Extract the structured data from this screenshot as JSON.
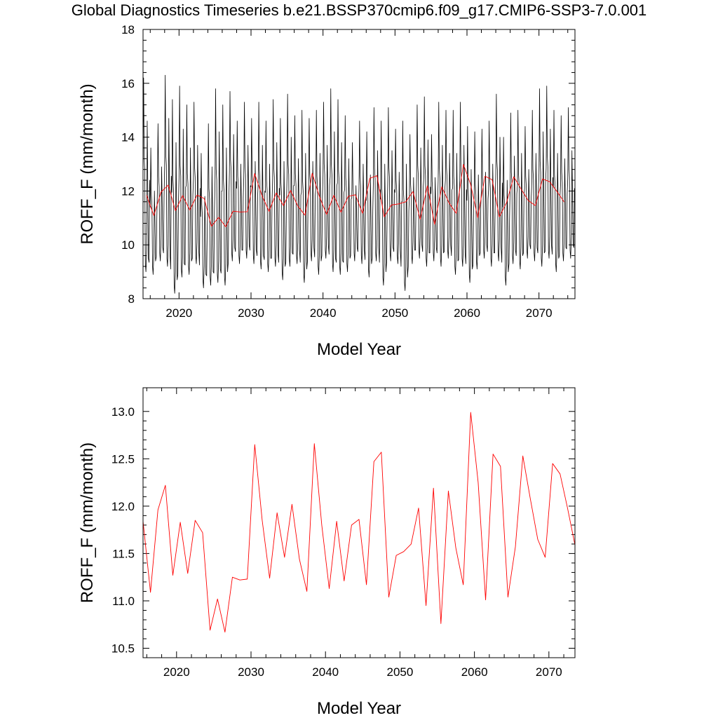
{
  "page_title": "Global Diagnostics Timeseries b.e21.BSSP370cmip6.f09_g17.CMIP6-SSP3-7.0.001",
  "colors": {
    "monthly": "#000000",
    "annual": "#ff0000",
    "axis": "#000000"
  },
  "chart_data": [
    {
      "type": "line",
      "title": "Global Diagnostics Timeseries b.e21.BSSP370cmip6.f09_g17.CMIP6-SSP3-7.0.001",
      "xlabel": "Model Year",
      "ylabel": "ROFF_F (mm/month)",
      "xlim": [
        2015,
        2075
      ],
      "ylim": [
        8,
        18
      ],
      "x_ticks": [
        2020,
        2030,
        2040,
        2050,
        2060,
        2070
      ],
      "x_tick_labels": [
        "2020",
        "2030",
        "2040",
        "2050",
        "2060",
        "2070"
      ],
      "y_ticks": [
        8,
        10,
        12,
        14,
        16,
        18
      ],
      "y_tick_labels": [
        "8",
        "10",
        "12",
        "14",
        "16",
        "18"
      ],
      "series": [
        {
          "name": "monthly",
          "color": "#000000",
          "start_year": 2015,
          "seasonal_peaks": [
            16.2,
            13.6,
            14.5,
            16.3,
            15.4,
            15.9,
            15.2,
            15.3,
            13.4,
            14.5,
            15.8,
            15.2,
            15.7,
            14.6,
            15.3,
            14.7,
            15.3,
            14.6,
            15.4,
            14.7,
            15.6,
            14.8,
            15.0,
            14.7,
            15.0,
            15.3,
            15.8,
            15.4,
            14.8,
            13.8,
            14.6,
            14.2,
            15.1,
            14.6,
            15.1,
            14.3,
            14.6,
            14.1,
            15.2,
            15.5,
            14.1,
            15.3,
            15.0,
            15.0,
            15.3,
            14.4,
            14.2,
            14.3,
            14.6,
            15.6,
            14.0,
            14.9,
            15.0,
            14.4,
            15.0,
            15.8,
            15.9,
            15.0,
            14.8,
            15.1
          ],
          "seasonal_troughs": [
            9.0,
            8.9,
            9.4,
            9.2,
            8.2,
            8.8,
            8.9,
            9.3,
            8.4,
            8.5,
            8.6,
            8.5,
            9.4,
            9.3,
            9.5,
            9.3,
            9.1,
            9.0,
            9.2,
            8.7,
            9.2,
            9.3,
            8.6,
            9.4,
            8.9,
            9.5,
            9.0,
            8.9,
            9.0,
            9.4,
            9.3,
            8.8,
            9.4,
            8.5,
            9.4,
            9.3,
            8.3,
            9.3,
            9.5,
            9.2,
            9.4,
            9.2,
            9.5,
            8.9,
            9.2,
            8.6,
            9.1,
            9.5,
            9.2,
            9.4,
            8.5,
            9.3,
            9.1,
            9.5,
            9.4,
            9.2,
            9.5,
            9.0,
            9.4,
            9.5
          ]
        },
        {
          "name": "annual",
          "color": "#ff0000",
          "x": [
            2015.5,
            2016.5,
            2017.5,
            2018.5,
            2019.5,
            2020.5,
            2021.5,
            2022.5,
            2023.5,
            2024.5,
            2025.5,
            2026.5,
            2027.5,
            2028.5,
            2029.5,
            2030.5,
            2031.5,
            2032.5,
            2033.5,
            2034.5,
            2035.5,
            2036.5,
            2037.5,
            2038.5,
            2039.5,
            2040.5,
            2041.5,
            2042.5,
            2043.5,
            2044.5,
            2045.5,
            2046.5,
            2047.5,
            2048.5,
            2049.5,
            2050.5,
            2051.5,
            2052.5,
            2053.5,
            2054.5,
            2055.5,
            2056.5,
            2057.5,
            2058.5,
            2059.5,
            2060.5,
            2061.5,
            2062.5,
            2063.5,
            2064.5,
            2065.5,
            2066.5,
            2067.5,
            2068.5,
            2069.5,
            2070.5,
            2071.5,
            2072.5,
            2073.5
          ],
          "y": [
            11.84,
            11.09,
            11.96,
            12.22,
            11.27,
            11.83,
            11.29,
            11.85,
            11.72,
            10.69,
            11.02,
            10.67,
            11.25,
            11.22,
            11.23,
            12.65,
            11.85,
            11.24,
            11.93,
            11.46,
            12.02,
            11.44,
            11.1,
            12.66,
            11.8,
            11.13,
            11.84,
            11.21,
            11.8,
            11.86,
            11.17,
            12.47,
            12.57,
            11.04,
            11.48,
            11.52,
            11.6,
            11.98,
            10.95,
            12.19,
            10.76,
            12.16,
            11.56,
            11.17,
            12.99,
            12.25,
            11.01,
            12.55,
            12.42,
            11.04,
            11.57,
            12.53,
            12.08,
            11.65,
            11.46,
            12.45,
            12.34,
            11.98,
            11.59
          ]
        }
      ]
    },
    {
      "type": "line",
      "title": "",
      "xlabel": "Model Year",
      "ylabel": "ROFF_F (mm/month)",
      "xlim": [
        2015.5,
        2073.5
      ],
      "ylim": [
        10.4,
        13.25
      ],
      "x_ticks": [
        2020,
        2030,
        2040,
        2050,
        2060,
        2070
      ],
      "x_tick_labels": [
        "2020",
        "2030",
        "2040",
        "2050",
        "2060",
        "2070"
      ],
      "y_ticks": [
        10.5,
        11.0,
        11.5,
        12.0,
        12.5,
        13.0
      ],
      "y_tick_labels": [
        "10.5",
        "11.0",
        "11.5",
        "12.0",
        "12.5",
        "13.0"
      ],
      "series": [
        {
          "name": "annual",
          "color": "#ff0000",
          "x": [
            2015.5,
            2016.5,
            2017.5,
            2018.5,
            2019.5,
            2020.5,
            2021.5,
            2022.5,
            2023.5,
            2024.5,
            2025.5,
            2026.5,
            2027.5,
            2028.5,
            2029.5,
            2030.5,
            2031.5,
            2032.5,
            2033.5,
            2034.5,
            2035.5,
            2036.5,
            2037.5,
            2038.5,
            2039.5,
            2040.5,
            2041.5,
            2042.5,
            2043.5,
            2044.5,
            2045.5,
            2046.5,
            2047.5,
            2048.5,
            2049.5,
            2050.5,
            2051.5,
            2052.5,
            2053.5,
            2054.5,
            2055.5,
            2056.5,
            2057.5,
            2058.5,
            2059.5,
            2060.5,
            2061.5,
            2062.5,
            2063.5,
            2064.5,
            2065.5,
            2066.5,
            2067.5,
            2068.5,
            2069.5,
            2070.5,
            2071.5,
            2072.5,
            2073.5
          ],
          "y": [
            11.84,
            11.09,
            11.96,
            12.22,
            11.27,
            11.83,
            11.29,
            11.85,
            11.72,
            10.69,
            11.02,
            10.67,
            11.25,
            11.22,
            11.23,
            12.65,
            11.85,
            11.24,
            11.93,
            11.46,
            12.02,
            11.44,
            11.1,
            12.66,
            11.8,
            11.13,
            11.84,
            11.21,
            11.8,
            11.86,
            11.17,
            12.47,
            12.57,
            11.04,
            11.48,
            11.52,
            11.6,
            11.98,
            10.95,
            12.19,
            10.76,
            12.16,
            11.56,
            11.17,
            12.99,
            12.25,
            11.01,
            12.55,
            12.42,
            11.04,
            11.57,
            12.53,
            12.08,
            11.65,
            11.46,
            12.45,
            12.34,
            11.98,
            11.59
          ]
        }
      ]
    }
  ]
}
